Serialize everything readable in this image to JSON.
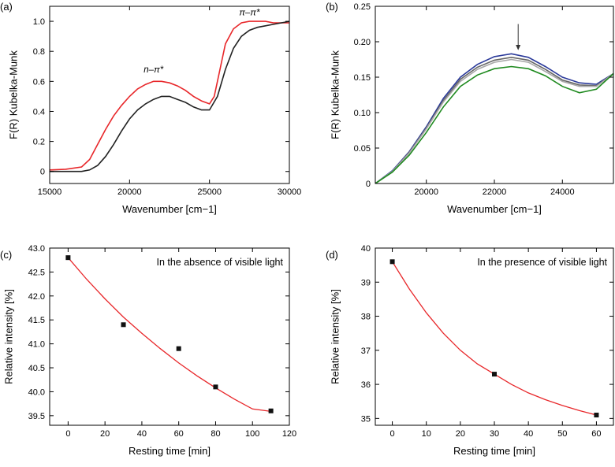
{
  "chart_data": [
    {
      "panel_label": "(a)",
      "type": "line",
      "xlabel": "Wavenumber [cm−1]",
      "ylabel": "F(R) Kubelka-Munk",
      "xlim": [
        15000,
        30000
      ],
      "ylim": [
        -0.08,
        1.1
      ],
      "xticks": [
        15000,
        20000,
        25000,
        30000
      ],
      "xtick_labels": [
        "15000",
        "20000",
        "25000",
        "30000"
      ],
      "yticks": [
        0,
        0.2,
        0.4,
        0.6,
        0.8,
        1.0
      ],
      "ytick_labels": [
        "0",
        "0.2",
        "0.4",
        "0.6",
        "0.8",
        "1.0"
      ],
      "annotations": [
        {
          "text": "n–π*",
          "x": 21500,
          "y": 0.66
        },
        {
          "text": "π–π*",
          "x": 27500,
          "y": 1.04
        }
      ],
      "series": [
        {
          "color": "#e8272a",
          "x": [
            15000,
            16000,
            17000,
            17500,
            18000,
            18500,
            19000,
            19500,
            20000,
            20500,
            21000,
            21500,
            22000,
            22500,
            23000,
            23500,
            24000,
            24500,
            25000,
            25300,
            25600,
            26000,
            26500,
            27000,
            27500,
            28000,
            28500,
            29000,
            29500,
            30000
          ],
          "y": [
            0.01,
            0.015,
            0.03,
            0.08,
            0.18,
            0.28,
            0.37,
            0.44,
            0.5,
            0.55,
            0.58,
            0.6,
            0.6,
            0.59,
            0.57,
            0.54,
            0.5,
            0.47,
            0.45,
            0.5,
            0.65,
            0.85,
            0.95,
            0.99,
            1.0,
            1.0,
            1.0,
            0.99,
            0.99,
            0.99
          ]
        },
        {
          "color": "#222222",
          "x": [
            15000,
            16000,
            17000,
            17500,
            18000,
            18500,
            19000,
            19500,
            20000,
            20500,
            21000,
            21500,
            22000,
            22500,
            23000,
            23500,
            24000,
            24500,
            25000,
            25500,
            26000,
            26500,
            27000,
            27500,
            28000,
            28500,
            29000,
            29500,
            30000
          ],
          "y": [
            0.0,
            0.0,
            0.0,
            0.01,
            0.04,
            0.1,
            0.18,
            0.27,
            0.35,
            0.41,
            0.45,
            0.48,
            0.5,
            0.5,
            0.48,
            0.46,
            0.43,
            0.41,
            0.41,
            0.5,
            0.68,
            0.82,
            0.9,
            0.94,
            0.96,
            0.97,
            0.98,
            0.99,
            1.0
          ]
        }
      ]
    },
    {
      "panel_label": "(b)",
      "type": "line",
      "xlabel": "Wavenumber [cm−1]",
      "ylabel": "F(R) Kubelka-Munk",
      "xlim": [
        18500,
        25500
      ],
      "ylim": [
        0,
        0.25
      ],
      "xticks": [
        20000,
        22000,
        24000
      ],
      "xtick_labels": [
        "20000",
        "22000",
        "24000"
      ],
      "yticks": [
        0,
        0.05,
        0.1,
        0.15,
        0.2,
        0.25
      ],
      "ytick_labels": [
        "0",
        "0.05",
        "0.10",
        "0.15",
        "0.20",
        "0.25"
      ],
      "arrow_at_x": 22700,
      "series": [
        {
          "color": "#2b3a9a",
          "x": [
            18500,
            19000,
            19500,
            20000,
            20500,
            21000,
            21500,
            22000,
            22500,
            23000,
            23500,
            24000,
            24500,
            25000,
            25500
          ],
          "y": [
            0.0,
            0.018,
            0.045,
            0.08,
            0.12,
            0.15,
            0.168,
            0.179,
            0.183,
            0.178,
            0.165,
            0.15,
            0.142,
            0.14,
            0.155
          ]
        },
        {
          "color": "#666666",
          "x": [
            18500,
            19000,
            19500,
            20000,
            20500,
            21000,
            21500,
            22000,
            22500,
            23000,
            23500,
            24000,
            24500,
            25000,
            25500
          ],
          "y": [
            0.0,
            0.017,
            0.044,
            0.078,
            0.117,
            0.147,
            0.164,
            0.174,
            0.178,
            0.174,
            0.161,
            0.146,
            0.139,
            0.138,
            0.155
          ]
        },
        {
          "color": "#a8a8a8",
          "x": [
            18500,
            19000,
            19500,
            20000,
            20500,
            21000,
            21500,
            22000,
            22500,
            23000,
            23500,
            24000,
            24500,
            25000,
            25500
          ],
          "y": [
            0.0,
            0.017,
            0.043,
            0.077,
            0.115,
            0.144,
            0.161,
            0.171,
            0.175,
            0.171,
            0.158,
            0.144,
            0.137,
            0.137,
            0.155
          ]
        },
        {
          "color": "#1f8a1f",
          "x": [
            18500,
            19000,
            19500,
            20000,
            20500,
            21000,
            21500,
            22000,
            22500,
            23000,
            23500,
            24000,
            24500,
            25000,
            25500
          ],
          "y": [
            0.0,
            0.016,
            0.04,
            0.072,
            0.108,
            0.137,
            0.153,
            0.162,
            0.165,
            0.162,
            0.152,
            0.137,
            0.128,
            0.133,
            0.155
          ]
        }
      ]
    },
    {
      "panel_label": "(c)",
      "type": "scatter",
      "xlabel": "Resting time [min]",
      "ylabel": "Relative intensity [%]",
      "title": "In the absence of visible light",
      "xlim": [
        -10,
        120
      ],
      "ylim": [
        39.3,
        43.0
      ],
      "xticks": [
        0,
        20,
        40,
        60,
        80,
        100,
        120
      ],
      "xtick_labels": [
        "0",
        "20",
        "40",
        "60",
        "80",
        "100",
        "120"
      ],
      "yticks": [
        39.5,
        40.0,
        40.5,
        41.0,
        41.5,
        42.0,
        42.5,
        43.0
      ],
      "ytick_labels": [
        "39.5",
        "40.0",
        "40.5",
        "41.0",
        "41.5",
        "42.0",
        "42.5",
        "43.0"
      ],
      "points": {
        "x": [
          0,
          30,
          60,
          80,
          110
        ],
        "y": [
          42.8,
          41.4,
          40.9,
          40.1,
          39.6
        ]
      },
      "fit": {
        "color": "#e8272a",
        "x": [
          0,
          10,
          20,
          30,
          40,
          50,
          60,
          70,
          80,
          90,
          100,
          110
        ],
        "y": [
          42.8,
          42.35,
          41.94,
          41.56,
          41.22,
          40.9,
          40.6,
          40.33,
          40.08,
          39.85,
          39.64,
          39.59
        ]
      }
    },
    {
      "panel_label": "(d)",
      "type": "scatter",
      "xlabel": "Resting time [min]",
      "ylabel": "Relative intensity [%]",
      "title": "In the presence of visible light",
      "xlim": [
        -5,
        65
      ],
      "ylim": [
        34.8,
        40.0
      ],
      "xticks": [
        0,
        10,
        20,
        30,
        40,
        50,
        60
      ],
      "xtick_labels": [
        "0",
        "10",
        "20",
        "30",
        "40",
        "50",
        "60"
      ],
      "yticks": [
        35,
        36,
        37,
        38,
        39,
        40
      ],
      "ytick_labels": [
        "35",
        "36",
        "37",
        "38",
        "39",
        "40"
      ],
      "points": {
        "x": [
          0,
          30,
          60
        ],
        "y": [
          39.6,
          36.3,
          35.1
        ]
      },
      "fit": {
        "color": "#e8272a",
        "x": [
          0,
          5,
          10,
          15,
          20,
          25,
          30,
          35,
          40,
          45,
          50,
          55,
          60
        ],
        "y": [
          39.6,
          38.8,
          38.1,
          37.5,
          37.0,
          36.6,
          36.3,
          36.0,
          35.75,
          35.55,
          35.38,
          35.23,
          35.1
        ]
      }
    }
  ]
}
